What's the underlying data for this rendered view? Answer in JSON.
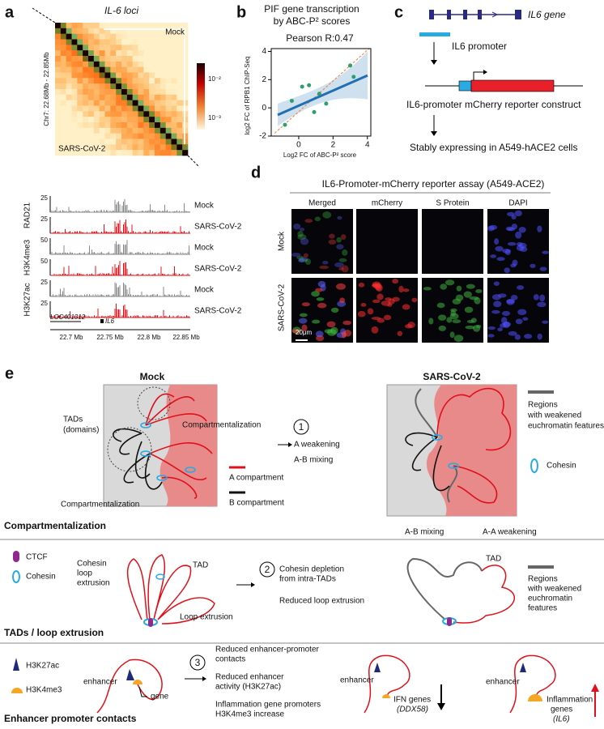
{
  "panel_labels": [
    "a",
    "b",
    "c",
    "d",
    "e"
  ],
  "panel_a": {
    "title": "IL-6 loci",
    "heatmap_labels": [
      "Mock",
      "SARS-CoV-2"
    ],
    "y_label": "Chr7: 22.68Mb - 22.85Mb",
    "colorbar_ticks": [
      "10⁻²",
      "10⁻³"
    ],
    "tracks": [
      {
        "name": "RAD21",
        "rows": [
          {
            "condition": "Mock",
            "scale": "25"
          },
          {
            "condition": "SARS-CoV-2",
            "scale": "25"
          }
        ]
      },
      {
        "name": "H3K4me3",
        "rows": [
          {
            "condition": "Mock",
            "scale": "50"
          },
          {
            "condition": "SARS-CoV-2",
            "scale": "50"
          }
        ]
      },
      {
        "name": "H3K27ac",
        "rows": [
          {
            "condition": "Mock",
            "scale": "25"
          },
          {
            "condition": "SARS-CoV-2",
            "scale": "25"
          }
        ]
      }
    ],
    "genes": [
      "LOC401312",
      "IL6"
    ],
    "x_ticks": [
      "22.7 Mb",
      "22.75 Mb",
      "22.8 Mb",
      "22.85 Mb"
    ]
  },
  "chart_data": {
    "type": "scatter",
    "title": [
      "PIF gene transcription",
      "by ABC-P² scores"
    ],
    "annotation": "Pearson R:0.47",
    "x_label": "Log2 FC of ABC-P² score",
    "y_label": "log2 FC of RPB1 ChIP-Seq",
    "x": [
      -0.8,
      -0.4,
      0.2,
      0.6,
      0.9,
      1.2,
      1.6,
      3.0,
      3.2
    ],
    "y": [
      -1.2,
      0.5,
      1.5,
      1.6,
      -0.3,
      1.0,
      0.3,
      3.0,
      2.2
    ],
    "color": "#2e9e6e",
    "xlim": [
      -1.6,
      4.2
    ],
    "ylim": [
      -2,
      4.2
    ],
    "xticks": [
      0,
      2,
      4
    ],
    "yticks": [
      -2,
      0,
      2,
      4
    ]
  },
  "panel_c": {
    "gene": "IL6 gene",
    "promoter": "IL6 promoter",
    "construct": "IL6-promoter mCherry reporter construct",
    "cells": "Stably expressing in A549-hACE2 cells"
  },
  "panel_d": {
    "title": "IL6-Promoter-mCherry reporter assay (A549-ACE2)",
    "columns": [
      "Merged",
      "mCherry",
      "S Protein",
      "DAPI"
    ],
    "rows": [
      "Mock",
      "SARS-CoV-2"
    ],
    "scale_bar": "20μm"
  },
  "panel_e": {
    "row1": {
      "mock": "Mock",
      "sars": "SARS-CoV-2",
      "tads": [
        "TADs",
        "(domains)"
      ],
      "compart_top": "Compartmentalization",
      "compart_bottom": "Compartmentalization",
      "step": "1",
      "step_text": [
        "A weakening",
        "A-B mixing"
      ],
      "legend_a": "A compartment",
      "legend_b": "B compartment",
      "regions": [
        "Regions",
        "with weakened",
        "euchromatin features"
      ],
      "cohesin": "Cohesin",
      "ab_mixing": "A-B mixing",
      "aa_weakening": "A-A weakening",
      "section": "Compartmentalization"
    },
    "row2": {
      "ctcf": "CTCF",
      "cohesin": "Cohesin",
      "loop": [
        "Cohesin",
        "loop",
        "extrusion"
      ],
      "tad_left": "TAD",
      "loop_extrusion": "Loop extrusion",
      "step": "2",
      "step_text": [
        "Cohesin depletion",
        "from intra-TADs",
        "Reduced loop extrusion"
      ],
      "tad_right": "TAD",
      "regions": [
        "Regions",
        "with weakened",
        "euchromatin",
        "features"
      ],
      "section": "TADs / loop extrusion"
    },
    "row3": {
      "h3k27ac": "H3K27ac",
      "h3k4me3": "H3K4me3",
      "enhancer": "enhancer",
      "gene": "gene",
      "step": "3",
      "step_text": [
        "Reduced enhancer-promoter",
        "contacts",
        "Reduced enhancer",
        "activity (H3K27ac)",
        "Inflammation gene promoters",
        "H3K4me3 increase"
      ],
      "enhancer2": "enhancer",
      "ifn": [
        "IFN genes",
        "(DDX58)"
      ],
      "enhancer3": "enhancer",
      "inflam": [
        "Inflammation",
        "genes",
        "(IL6)"
      ],
      "section": "Enhancer promoter contacts"
    }
  }
}
